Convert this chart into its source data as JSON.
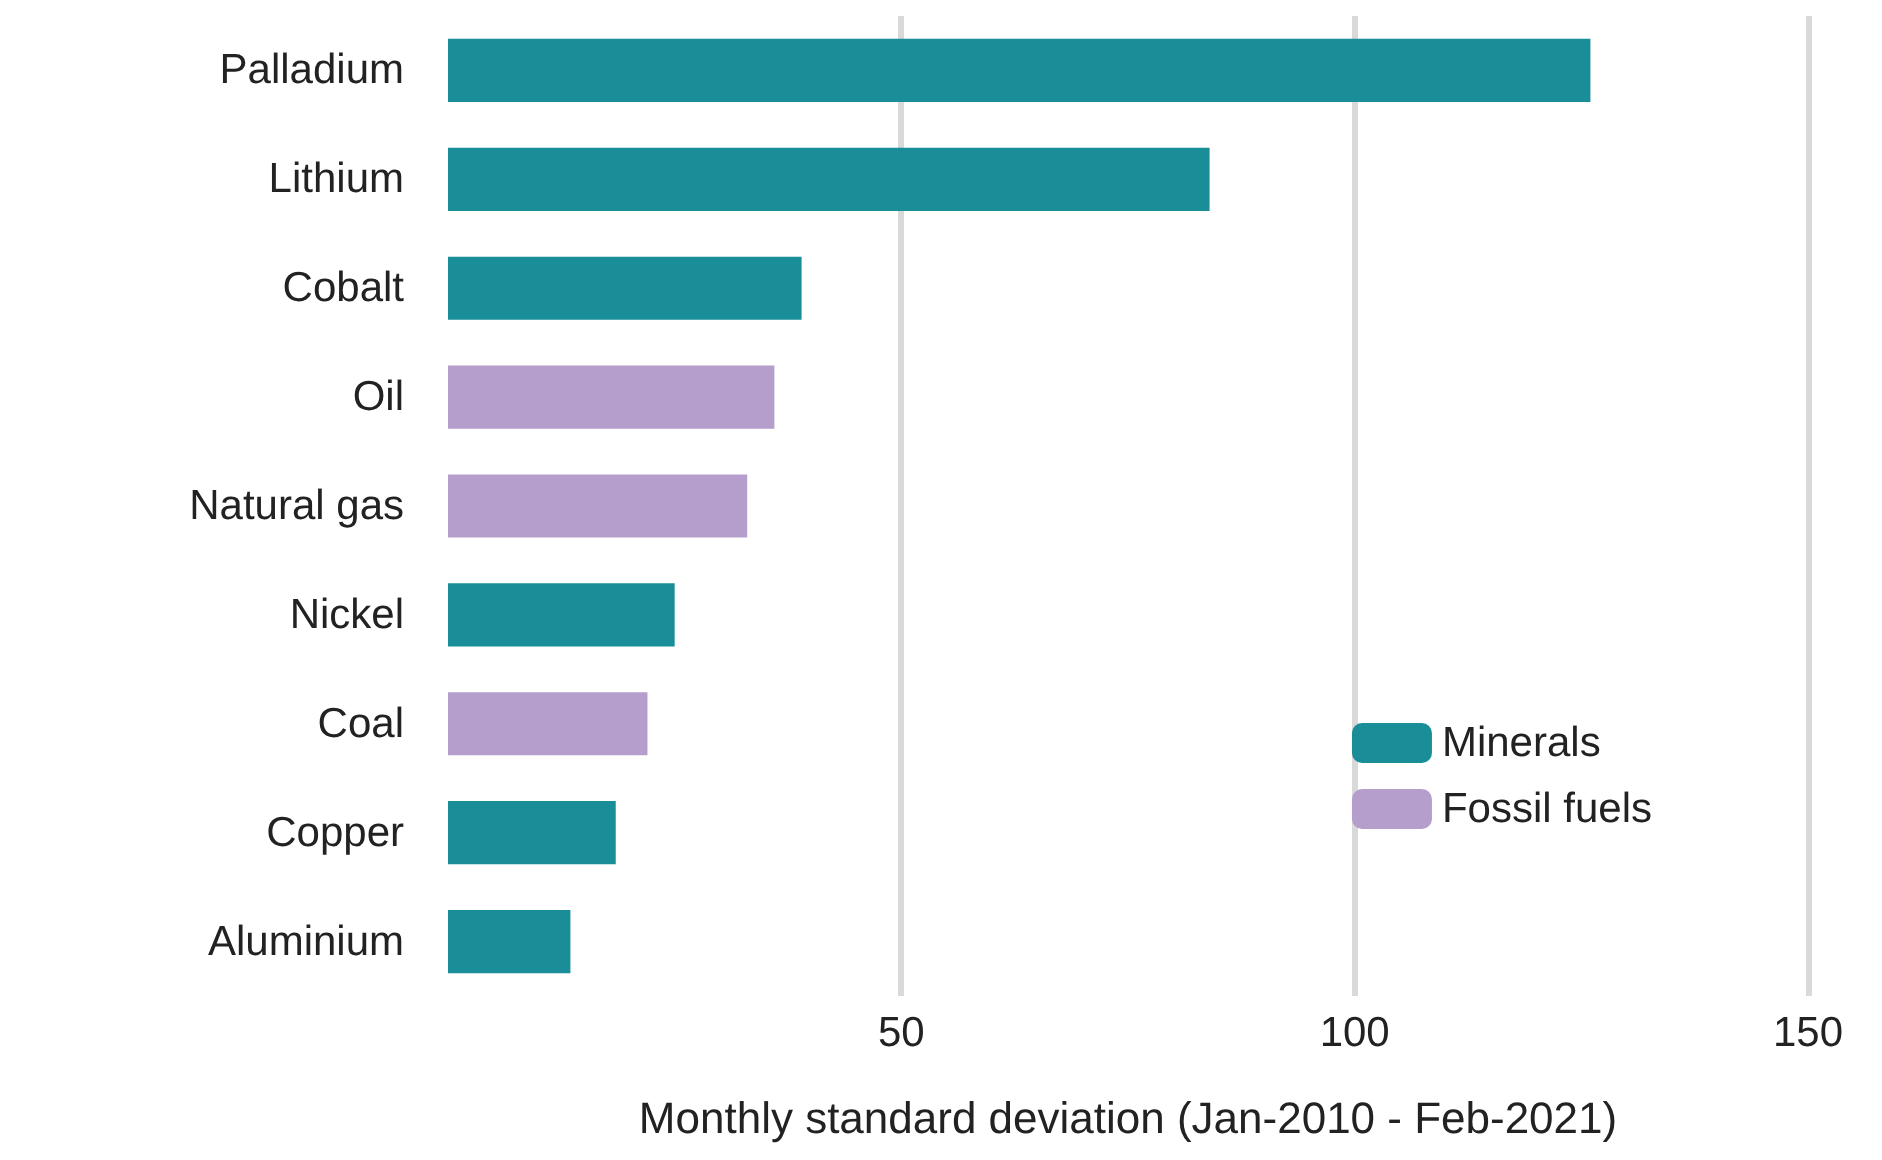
{
  "chart_data": {
    "type": "bar",
    "orientation": "horizontal",
    "xlabel": "Monthly standard deviation (Jan-2010 - Feb-2021)",
    "categories": [
      "Palladium",
      "Lithium",
      "Cobalt",
      "Oil",
      "Natural gas",
      "Nickel",
      "Coal",
      "Copper",
      "Aluminium"
    ],
    "series": [
      {
        "name": "Minerals",
        "color": "#1a8e98",
        "values": [
          126,
          84,
          39,
          null,
          null,
          25,
          null,
          18.5,
          13.5
        ]
      },
      {
        "name": "Fossil fuels",
        "color": "#b59dcc",
        "values": [
          null,
          null,
          null,
          36,
          33,
          null,
          22,
          null,
          null
        ]
      }
    ],
    "xlim": [
      0,
      150
    ],
    "xticks": [
      50,
      100,
      150
    ],
    "grid": "x",
    "legend": "bottom right"
  }
}
